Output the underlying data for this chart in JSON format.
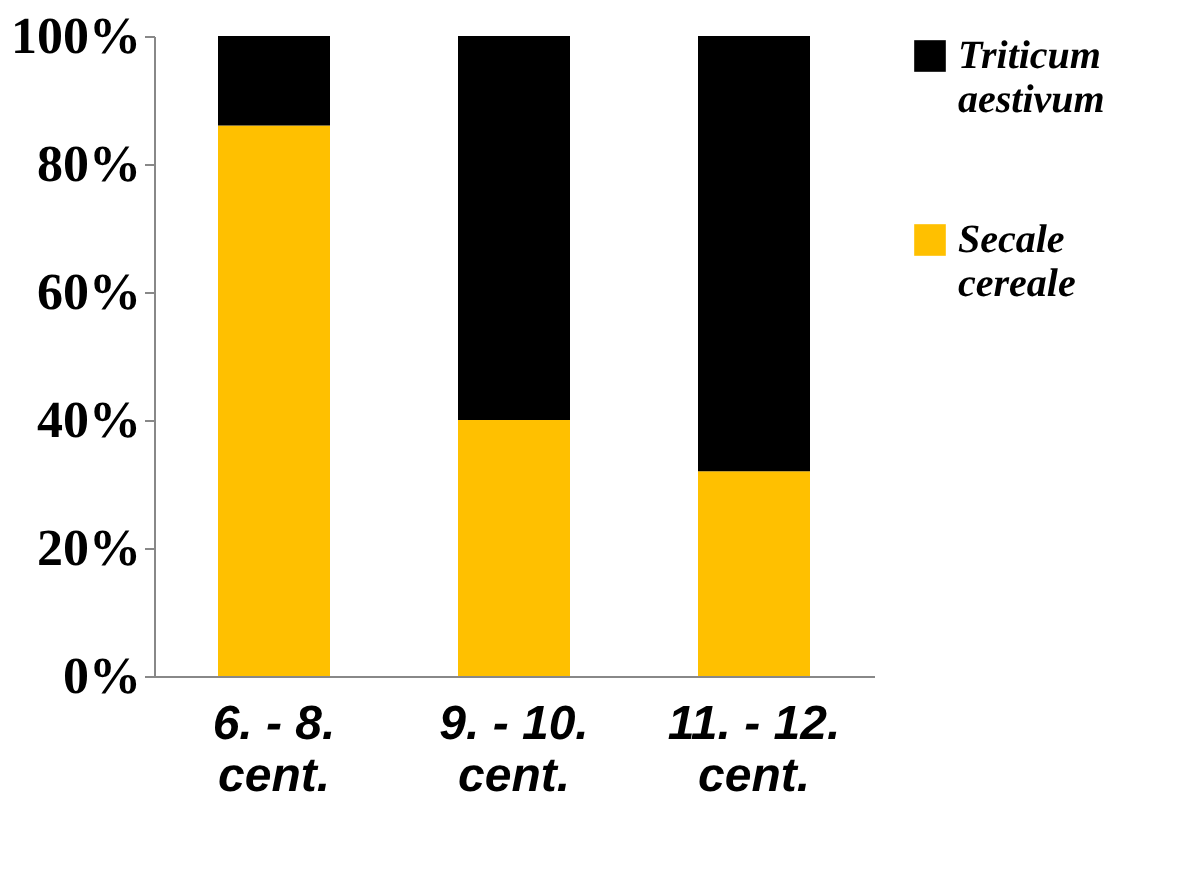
{
  "chart_data": {
    "type": "bar",
    "stacked": true,
    "categories": [
      "6. - 8. cent.",
      "9. - 10. cent.",
      "11. - 12. cent."
    ],
    "series": [
      {
        "name": "Secale cereale",
        "color": "#ffc000",
        "values": [
          86,
          40,
          32
        ]
      },
      {
        "name": "Triticum aestivum",
        "color": "#000000",
        "values": [
          14,
          60,
          68
        ]
      }
    ],
    "ylim": [
      0,
      100
    ],
    "yticks": [
      {
        "value": 0,
        "label": "0%"
      },
      {
        "value": 20,
        "label": "20%"
      },
      {
        "value": 40,
        "label": "40%"
      },
      {
        "value": 60,
        "label": "60%"
      },
      {
        "value": 80,
        "label": "80%"
      },
      {
        "value": 100,
        "label": "100%"
      }
    ],
    "grid": false,
    "legend": "right"
  }
}
